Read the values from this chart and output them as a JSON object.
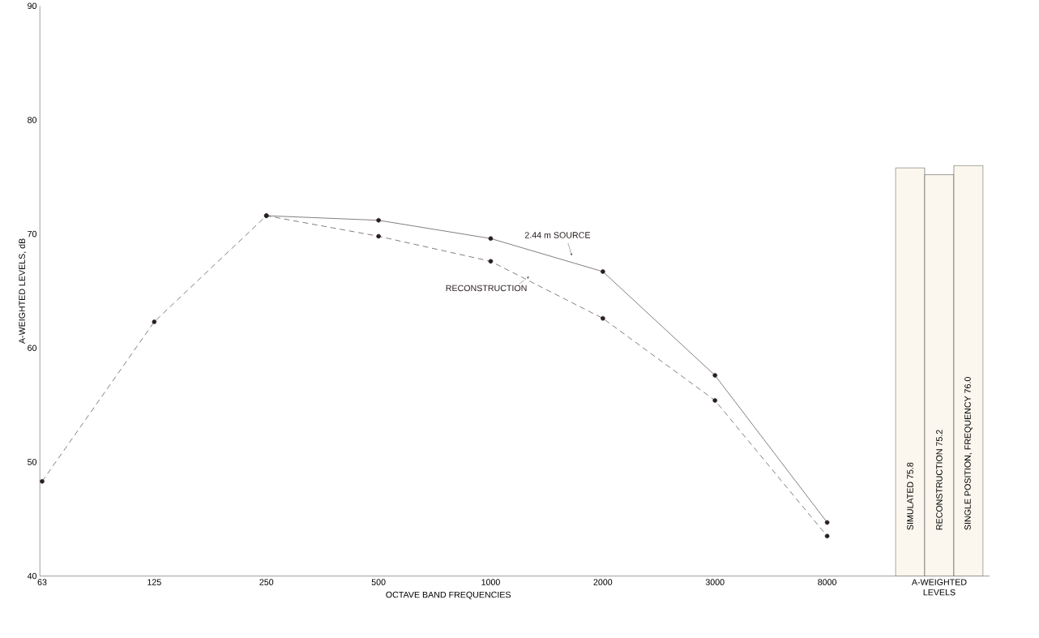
{
  "chart_data": {
    "type": "line",
    "xlabel": "OCTAVE BAND FREQUENCIES",
    "ylabel": "A-WEIGHTED LEVELS, dB",
    "categories": [
      "63",
      "125",
      "250",
      "500",
      "1000",
      "2000",
      "3000",
      "8000",
      "A-WEIGHTED LEVELS"
    ],
    "ylim": [
      40,
      90
    ],
    "yticks": [
      40,
      50,
      60,
      70,
      80,
      90
    ],
    "marker": "circle",
    "series": [
      {
        "name": "2.44 m SOURCE",
        "color": "#2a1f1f",
        "line_style": "solid",
        "values": [
          null,
          null,
          71.6,
          71.2,
          69.6,
          66.7,
          57.6,
          44.7,
          null
        ]
      },
      {
        "name": "RECONSTRUCTION",
        "color": "#2a1f1f",
        "line_style": "dashed",
        "values": [
          48.3,
          62.3,
          71.6,
          69.8,
          67.6,
          62.6,
          55.4,
          43.5,
          null
        ]
      },
      {
        "type": "bar",
        "color": "#fbf7ee",
        "values": [
          null,
          null,
          null,
          null,
          null,
          null,
          null,
          null,
          75.8
        ],
        "value_labels": [
          null,
          null,
          null,
          null,
          null,
          null,
          null,
          null,
          "SIMULATED 75.8"
        ]
      },
      {
        "type": "bar",
        "color": "#fbf7ee",
        "values": [
          null,
          null,
          null,
          null,
          null,
          null,
          null,
          null,
          75.2
        ],
        "value_labels": [
          null,
          null,
          null,
          null,
          null,
          null,
          null,
          null,
          "RECONSTRUCTION 75.2"
        ]
      },
      {
        "type": "bar",
        "color": "#fbf7ee",
        "values": [
          null,
          null,
          null,
          null,
          null,
          null,
          null,
          null,
          76.0
        ],
        "value_labels": [
          null,
          null,
          null,
          null,
          null,
          null,
          null,
          null,
          "SINGLE POSITION, FREQUENCY 76.0"
        ]
      }
    ]
  }
}
